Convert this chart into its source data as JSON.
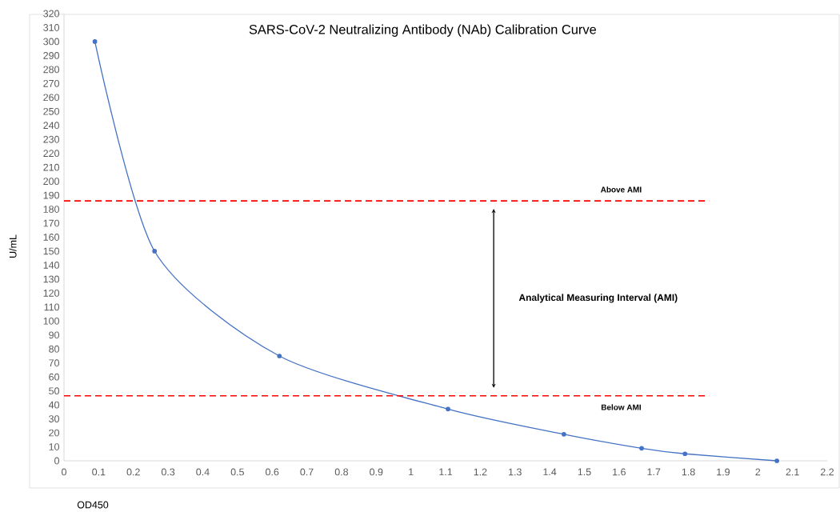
{
  "chart_data": {
    "type": "line",
    "title": "SARS-CoV-2 Neutralizing Antibody (NAb) Calibration Curve",
    "xlabel": "OD450",
    "ylabel": "U/mL",
    "x": [
      0.089,
      0.261,
      0.621,
      1.107,
      1.441,
      1.665,
      1.79,
      2.055
    ],
    "series": [
      {
        "color": "#4472c4",
        "values": [
          300,
          150,
          75,
          37,
          19,
          9,
          5,
          0
        ]
      }
    ],
    "marker": "circle",
    "line_style": "solid",
    "xlim": [
      0,
      2.2
    ],
    "xticks": [
      0,
      0.1,
      0.2,
      0.3,
      0.4,
      0.5,
      0.6,
      0.7,
      0.8,
      0.9,
      1,
      1.1,
      1.2,
      1.3,
      1.4,
      1.5,
      1.6,
      1.7,
      1.8,
      1.9,
      2,
      2.1,
      2.2
    ],
    "ylim": [
      0,
      320
    ],
    "yticks": [
      0,
      10,
      20,
      30,
      40,
      50,
      60,
      70,
      80,
      90,
      100,
      110,
      120,
      130,
      140,
      150,
      160,
      170,
      180,
      190,
      200,
      210,
      220,
      230,
      240,
      250,
      260,
      270,
      280,
      290,
      300,
      310,
      320
    ],
    "ref_lines": [
      {
        "axis": "y",
        "value": 186,
        "label": "Above AMI",
        "color": "#ff0000",
        "line_style": "dashed"
      },
      {
        "axis": "y",
        "value": 46.5,
        "label": "Below AMI",
        "color": "#ff0000",
        "line_style": "dashed"
      }
    ],
    "annotations": [
      "Analytical Measuring Interval (AMI)"
    ]
  }
}
